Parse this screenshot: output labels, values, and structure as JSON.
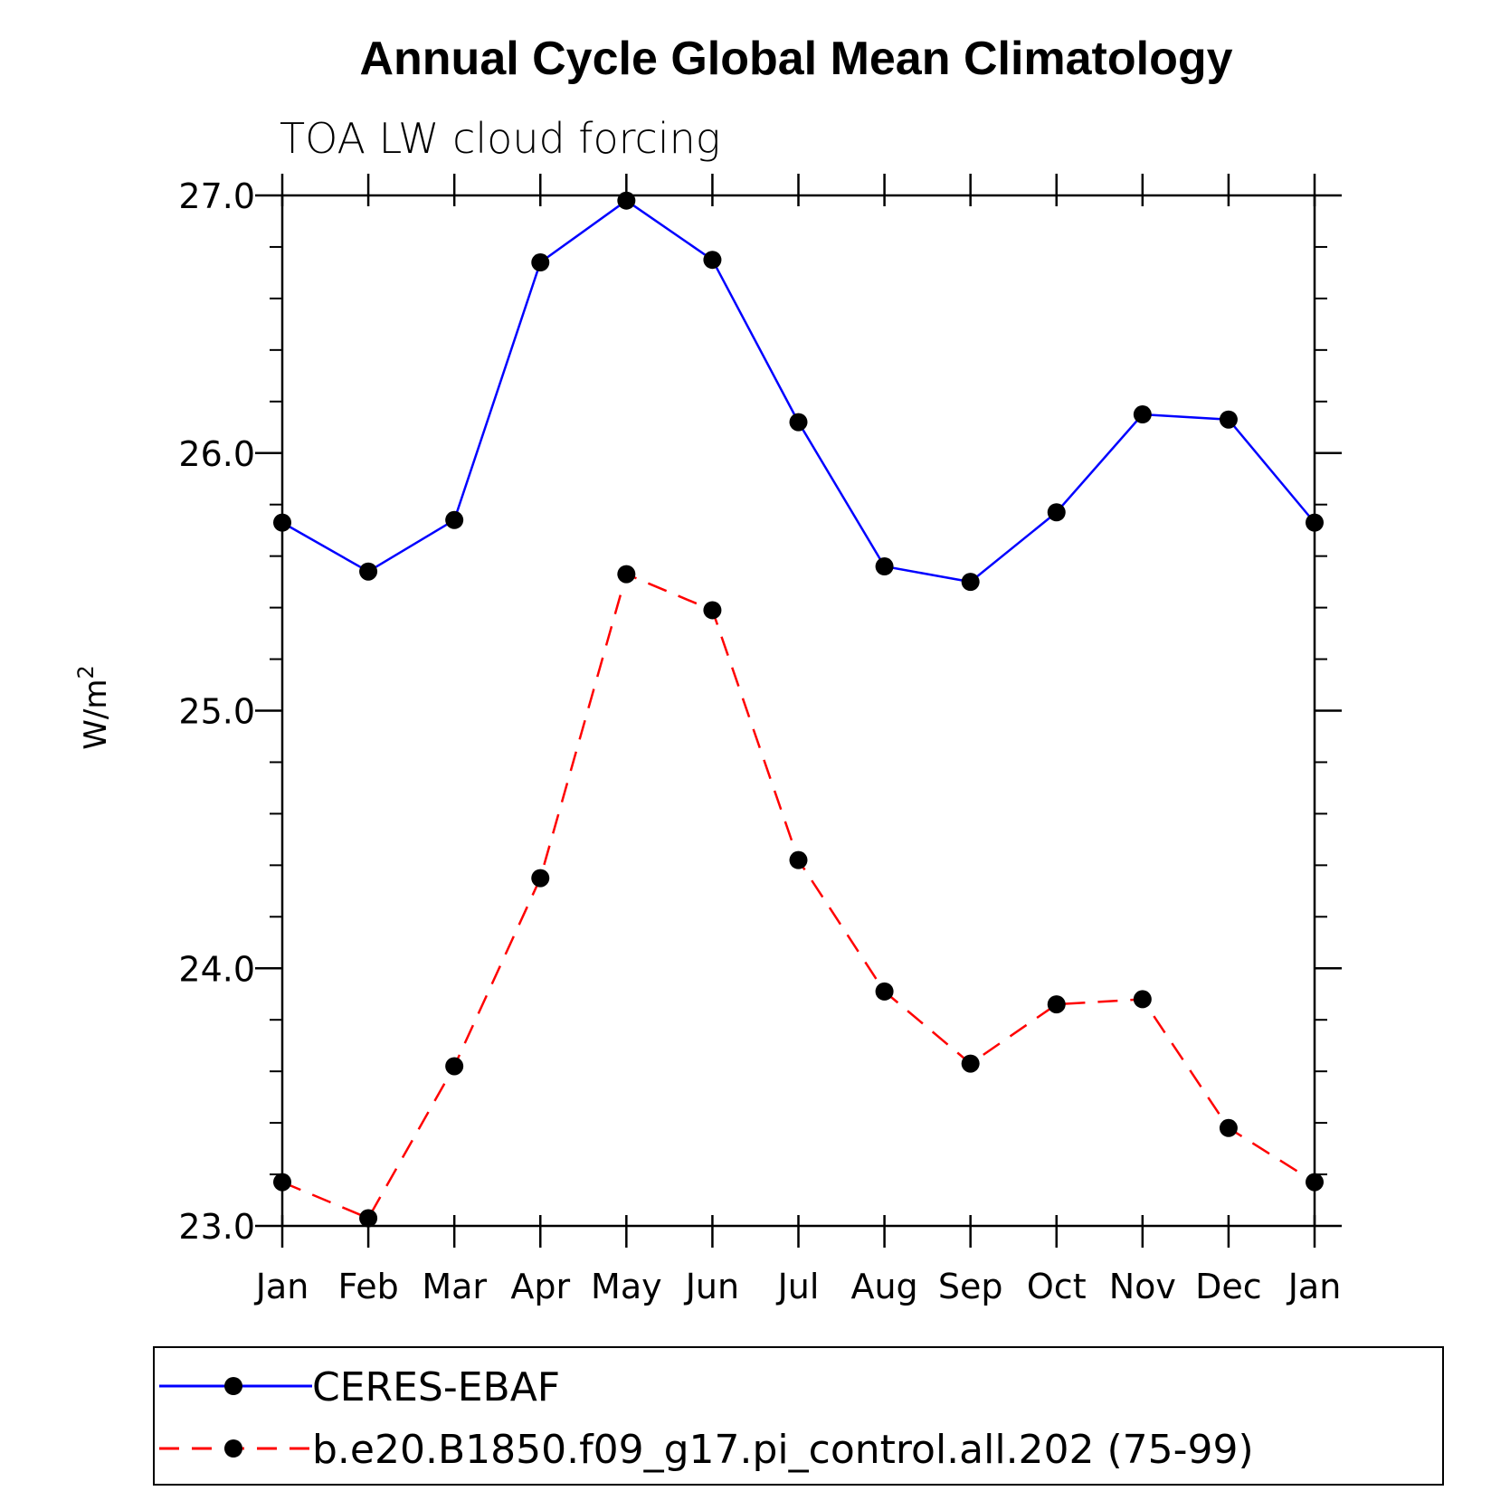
{
  "chart_data": {
    "type": "line",
    "title": "Annual Cycle Global Mean Climatology",
    "subtitle": "TOA LW cloud forcing",
    "xlabel": "",
    "ylabel": "W/m",
    "ylabel_sup": "2",
    "categories": [
      "Jan",
      "Feb",
      "Mar",
      "Apr",
      "May",
      "Jun",
      "Jul",
      "Aug",
      "Sep",
      "Oct",
      "Nov",
      "Dec",
      "Jan"
    ],
    "ylim": [
      23.0,
      27.0
    ],
    "yticks": [
      "23.0",
      "24.0",
      "25.0",
      "26.0",
      "27.0"
    ],
    "grid": false,
    "legend_position": "bottom",
    "series": [
      {
        "name": "CERES-EBAF",
        "color": "#0000ff",
        "line_style": "solid",
        "marker": "filled-circle",
        "values": [
          25.73,
          25.54,
          25.74,
          26.74,
          26.98,
          26.75,
          26.12,
          25.56,
          25.5,
          25.77,
          26.15,
          26.13,
          25.73
        ]
      },
      {
        "name": "b.e20.B1850.f09_g17.pi_control.all.202 (75-99)",
        "color": "#ff0000",
        "line_style": "dashed",
        "marker": "filled-circle",
        "values": [
          23.17,
          23.03,
          23.62,
          24.35,
          25.53,
          25.39,
          24.42,
          23.91,
          23.63,
          23.86,
          23.88,
          23.38,
          23.17
        ]
      }
    ]
  }
}
